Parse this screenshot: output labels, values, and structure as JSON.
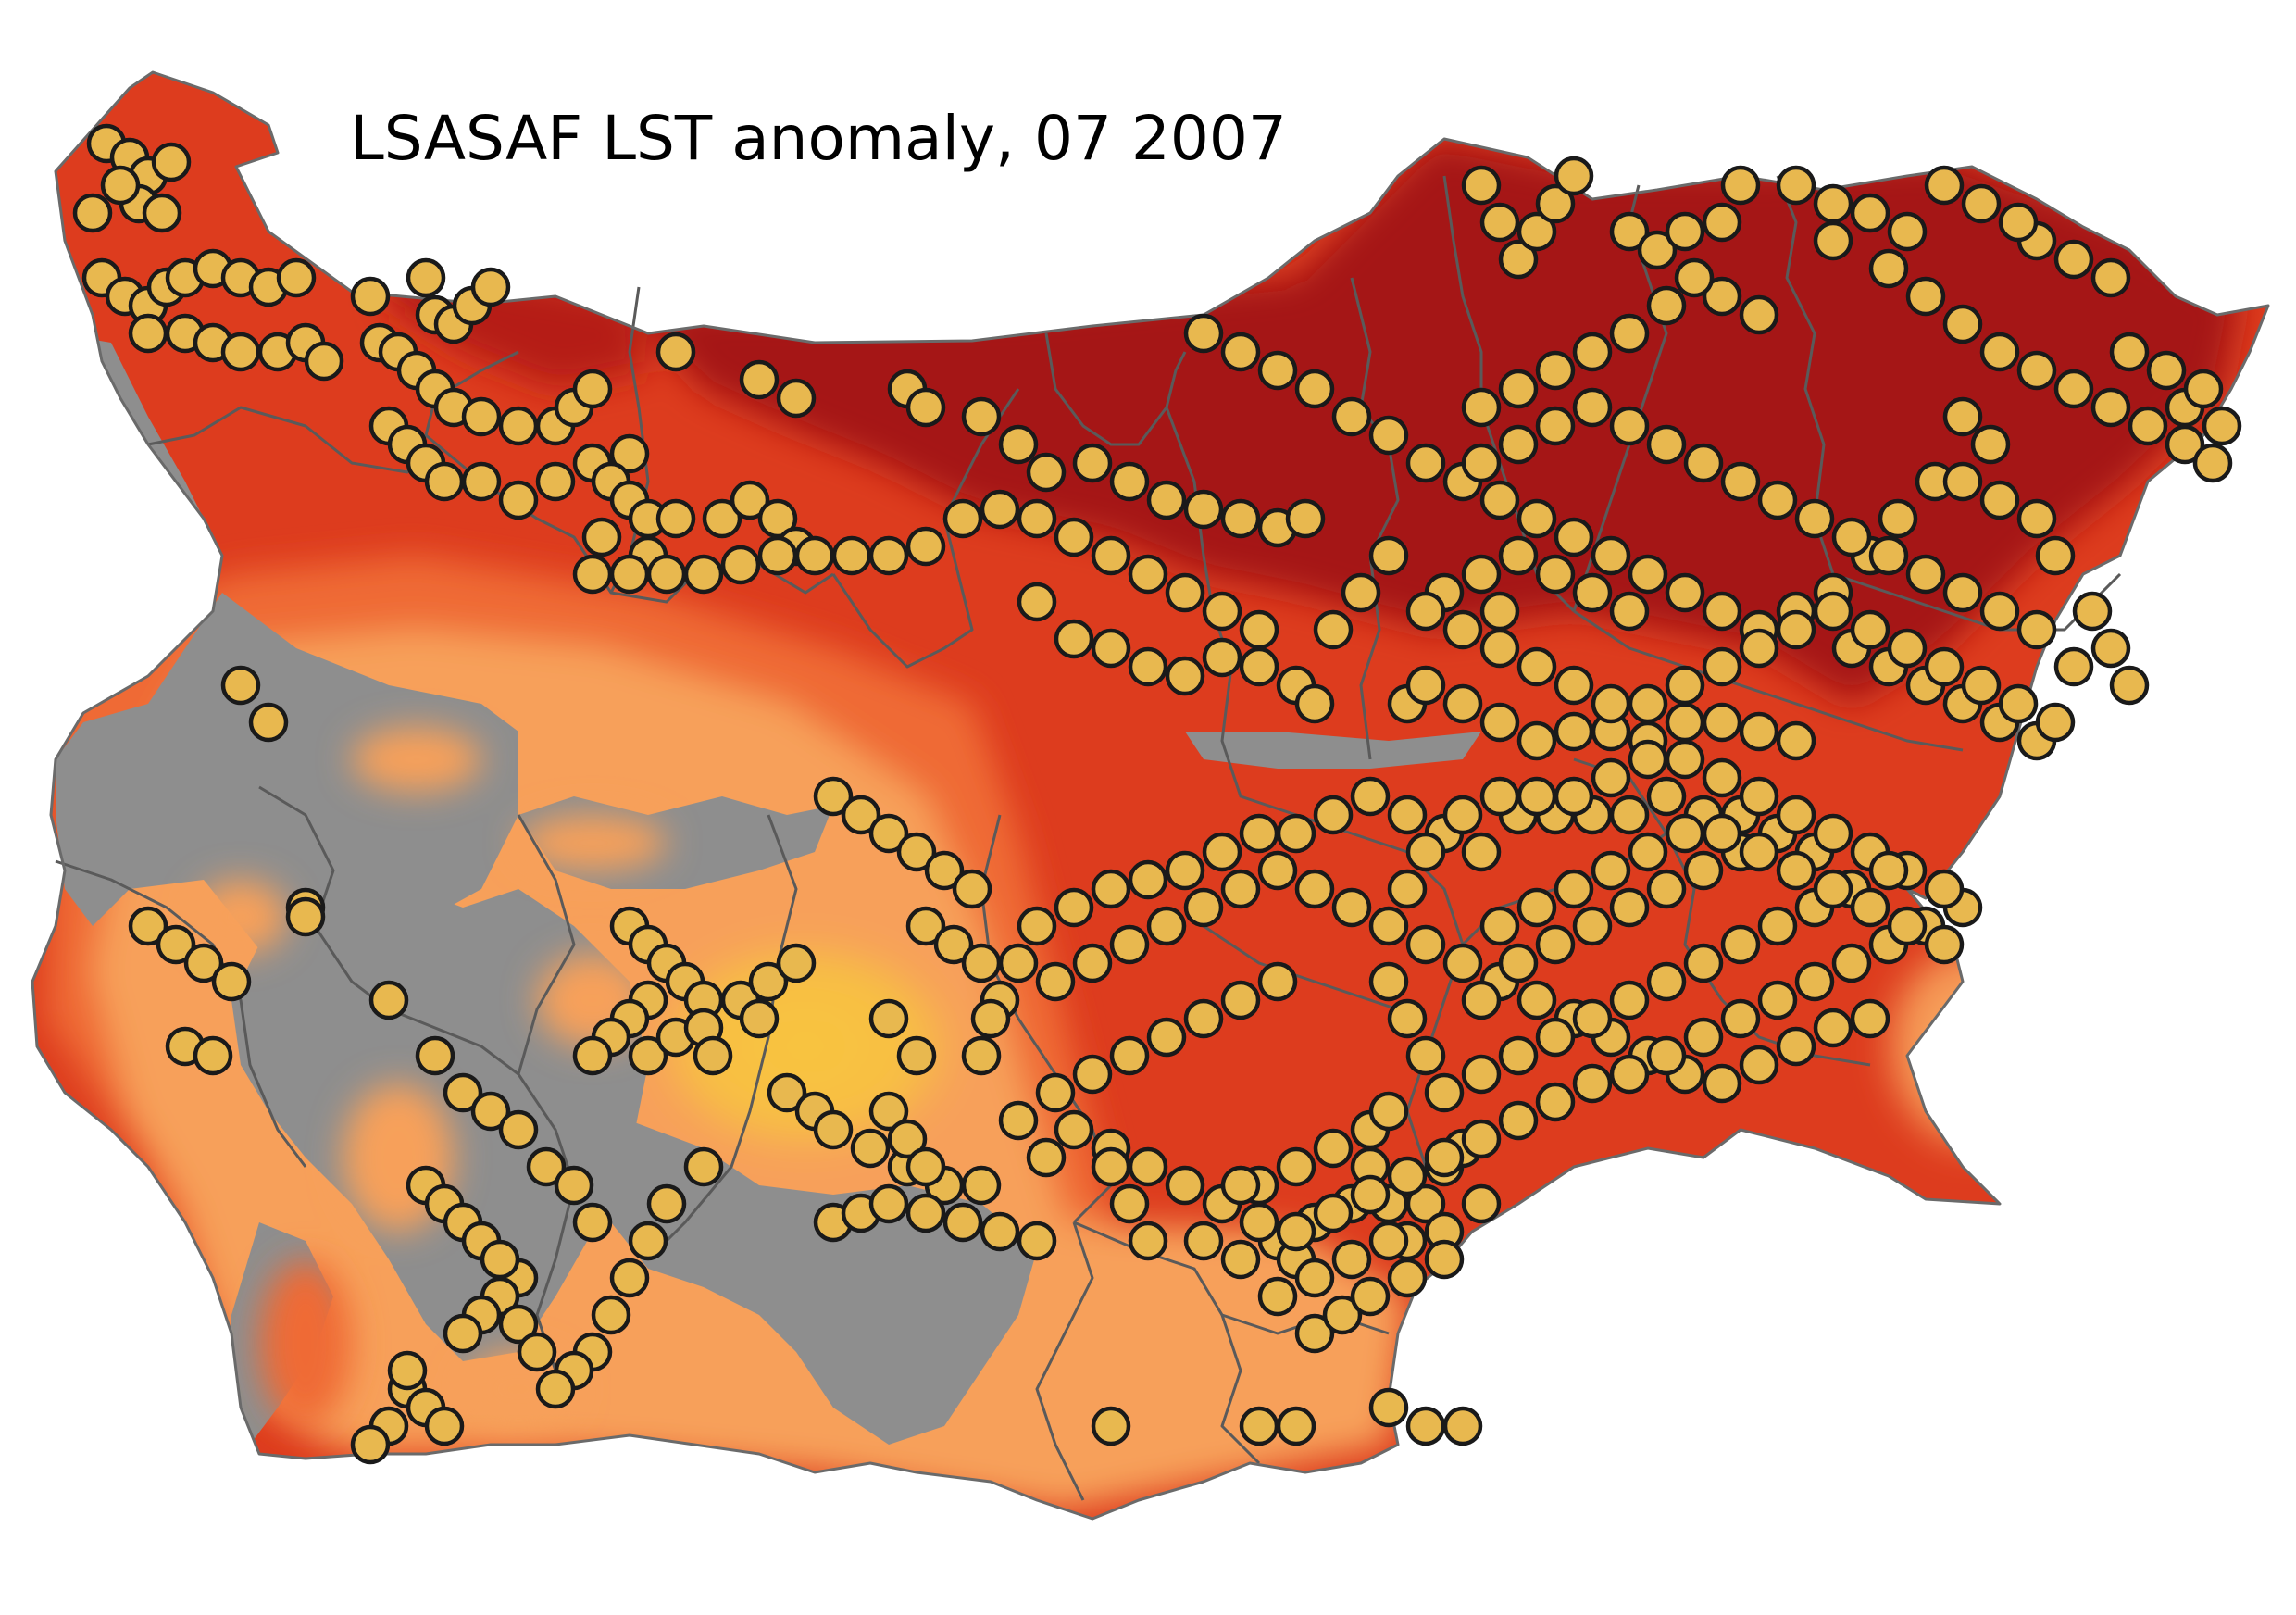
{
  "map": {
    "title": "LSASAF LST anomaly, 07 2007"
  },
  "colors": {
    "background": "#ffffff",
    "anomaly_very_high": "#a51515",
    "anomaly_high": "#dd3c1e",
    "anomaly_medium": "#ef6a35",
    "anomaly_low": "#f7a05a",
    "anomaly_lowest": "#f7c445",
    "no_data": "#8e8e8e",
    "station_fill": "#e8b84f",
    "station_stroke": "#1a1a1a",
    "district_borders": "#5a5a5a"
  },
  "markers": {
    "icon": "station-circle-icon",
    "label": ""
  }
}
